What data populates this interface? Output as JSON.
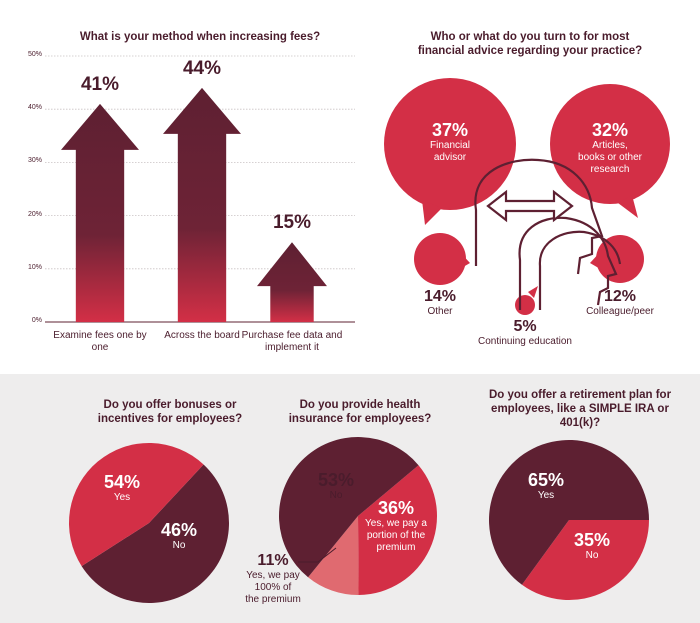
{
  "colors": {
    "maroon": "#5e2032",
    "red": "#d32f46",
    "pink": "#e06a70",
    "band": "#eeeded",
    "text": "#4a1c2c"
  },
  "chart_data": [
    {
      "type": "bar",
      "title": "What is your method when increasing fees?",
      "categories": [
        "Examine fees one by one",
        "Across the board",
        "Purchase fee data and implement it"
      ],
      "values": [
        41,
        44,
        15
      ],
      "value_labels": [
        "41%",
        "44%",
        "15%"
      ],
      "ylim": [
        0,
        50
      ],
      "yticks": [
        "50%",
        "40%",
        "30%",
        "20%",
        "10%",
        "0%"
      ],
      "grid": true
    },
    {
      "type": "bubble",
      "title_lines": [
        "Who or what do you turn to for most",
        "financial advice regarding your practice?"
      ],
      "categories": [
        "Financial advisor",
        "Articles, books or other research",
        "Other",
        "Continuing education",
        "Colleague/peer"
      ],
      "values": [
        37,
        32,
        14,
        5,
        12
      ],
      "value_labels": [
        "37%",
        "32%",
        "14%",
        "5%",
        "12%"
      ],
      "label_lines": [
        [
          "Financial",
          "advisor"
        ],
        [
          "Articles,",
          "books or other",
          "research"
        ],
        [
          "Other"
        ],
        [
          "Continuing education"
        ],
        [
          "Colleague/peer"
        ]
      ]
    },
    {
      "type": "pie",
      "title_lines": [
        "Do you offer bonuses or",
        "incentives for employees?"
      ],
      "categories": [
        "Yes",
        "No"
      ],
      "values": [
        54,
        46
      ],
      "value_labels": [
        "54%",
        "46%"
      ]
    },
    {
      "type": "pie",
      "title_lines": [
        "Do you provide health",
        "insurance for employees?"
      ],
      "categories": [
        "No",
        "Yes, we pay a portion of the premium",
        "Yes, we pay 100% of the premium"
      ],
      "values": [
        53,
        36,
        11
      ],
      "value_labels": [
        "53%",
        "36%",
        "11%"
      ],
      "label_lines": [
        [
          "No"
        ],
        [
          "Yes, we pay a",
          "portion of the",
          "premium"
        ],
        [
          "Yes, we pay",
          "100% of",
          "the premium"
        ]
      ]
    },
    {
      "type": "pie",
      "title_lines": [
        "Do you offer a retirement plan for",
        "employees, like a SIMPLE IRA or",
        "401(k)?"
      ],
      "categories": [
        "Yes",
        "No"
      ],
      "values": [
        65,
        35
      ],
      "value_labels": [
        "65%",
        "35%"
      ]
    }
  ]
}
